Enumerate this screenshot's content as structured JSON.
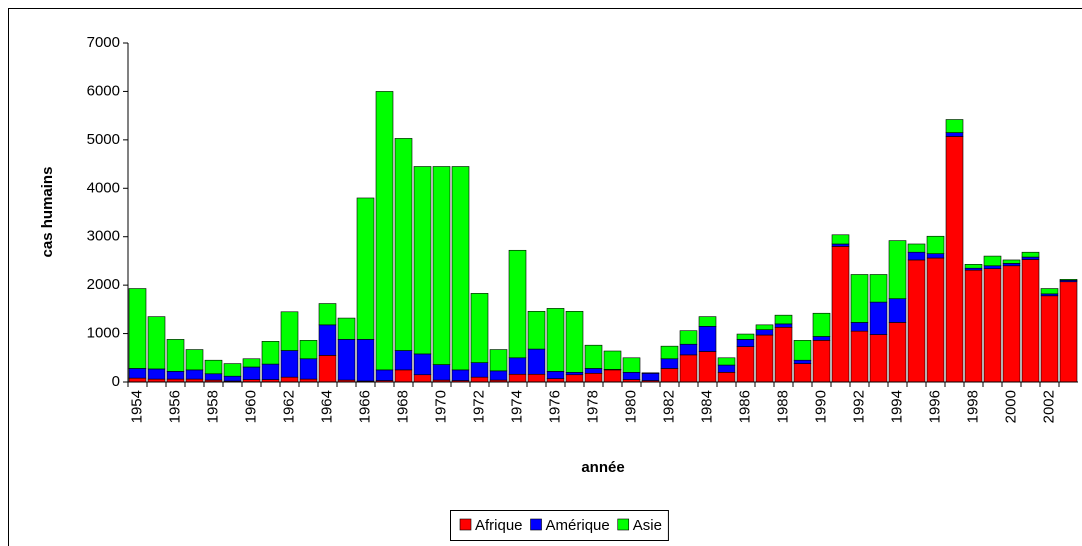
{
  "chart_data": {
    "type": "stacked_bar",
    "x_label": "année",
    "y_label": "cas humains",
    "categories": [
      "1954",
      null,
      "1956",
      null,
      "1958",
      null,
      "1960",
      null,
      "1962",
      null,
      "1964",
      null,
      "1966",
      null,
      "1968",
      null,
      "1970",
      null,
      "1972",
      null,
      "1974",
      null,
      "1976",
      null,
      "1978",
      null,
      "1980",
      null,
      "1982",
      null,
      "1984",
      null,
      "1986",
      null,
      "1988",
      null,
      "1990",
      null,
      "1992",
      null,
      "1994",
      null,
      "1996",
      null,
      "1998",
      null,
      "2000",
      null,
      "2002",
      null
    ],
    "series": [
      {
        "name": "Afrique",
        "color": "#ff0000",
        "values": [
          80,
          60,
          60,
          60,
          40,
          20,
          50,
          50,
          100,
          60,
          550,
          40,
          20,
          30,
          250,
          150,
          40,
          30,
          100,
          40,
          160,
          160,
          70,
          150,
          180,
          250,
          50,
          30,
          280,
          560,
          630,
          200,
          730,
          970,
          1130,
          380,
          860,
          2800,
          1050,
          980,
          1230,
          2520,
          2560,
          5070,
          2310,
          2340,
          2400,
          2530,
          1780,
          2070
        ]
      },
      {
        "name": "Amérique",
        "color": "#0000ff",
        "values": [
          200,
          210,
          160,
          190,
          130,
          100,
          260,
          320,
          550,
          420,
          630,
          840,
          860,
          220,
          400,
          430,
          320,
          220,
          300,
          190,
          340,
          520,
          150,
          50,
          100,
          10,
          150,
          150,
          200,
          220,
          520,
          150,
          150,
          110,
          70,
          70,
          80,
          50,
          180,
          670,
          490,
          160,
          90,
          80,
          40,
          60,
          50,
          50,
          40,
          30
        ]
      },
      {
        "name": "Asie",
        "color": "#00ff00",
        "values": [
          1650,
          1080,
          660,
          420,
          280,
          260,
          170,
          470,
          800,
          380,
          440,
          440,
          2920,
          5750,
          4380,
          3870,
          4090,
          4200,
          1430,
          440,
          2220,
          780,
          1300,
          1260,
          480,
          380,
          300,
          10,
          260,
          280,
          200,
          150,
          110,
          100,
          180,
          410,
          480,
          190,
          990,
          570,
          1200,
          170,
          360,
          270,
          80,
          200,
          70,
          100,
          110,
          20
        ]
      }
    ],
    "ylim": [
      0,
      7000
    ],
    "yticks": [
      0,
      1000,
      2000,
      3000,
      4000,
      5000,
      6000,
      7000
    ]
  }
}
